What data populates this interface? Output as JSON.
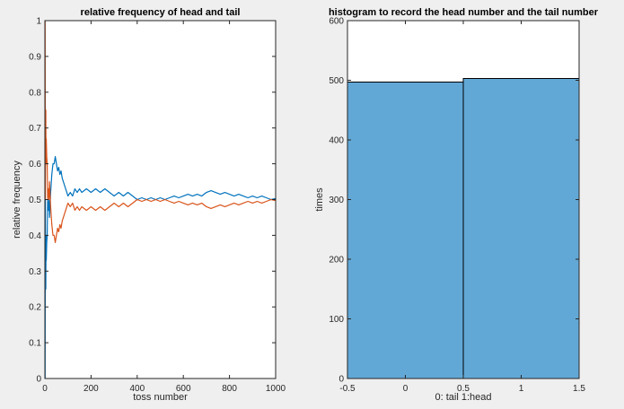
{
  "chart_data": [
    {
      "type": "line",
      "title": "relative frequency of head and tail",
      "xlabel": "toss number",
      "ylabel": "relative frequency",
      "xlim": [
        0,
        1000
      ],
      "ylim": [
        0,
        1
      ],
      "xticks": [
        "0",
        "200",
        "400",
        "600",
        "800",
        "1000"
      ],
      "yticks": [
        "0",
        "0.1",
        "0.2",
        "0.3",
        "0.4",
        "0.5",
        "0.6",
        "0.7",
        "0.8",
        "0.9",
        "1"
      ],
      "grid": false,
      "series": [
        {
          "color": "#0072bd",
          "points": [
            [
              1,
              0
            ],
            [
              2,
              0.5
            ],
            [
              3,
              0.33
            ],
            [
              4,
              0.25
            ],
            [
              5,
              0.4
            ],
            [
              6,
              0.33
            ],
            [
              8,
              0.38
            ],
            [
              10,
              0.4
            ],
            [
              12,
              0.5
            ],
            [
              15,
              0.47
            ],
            [
              18,
              0.5
            ],
            [
              20,
              0.45
            ],
            [
              25,
              0.52
            ],
            [
              30,
              0.57
            ],
            [
              35,
              0.6
            ],
            [
              40,
              0.6
            ],
            [
              45,
              0.62
            ],
            [
              50,
              0.6
            ],
            [
              55,
              0.58
            ],
            [
              60,
              0.59
            ],
            [
              65,
              0.57
            ],
            [
              70,
              0.58
            ],
            [
              75,
              0.56
            ],
            [
              80,
              0.55
            ],
            [
              90,
              0.53
            ],
            [
              100,
              0.51
            ],
            [
              110,
              0.52
            ],
            [
              120,
              0.51
            ],
            [
              130,
              0.53
            ],
            [
              140,
              0.52
            ],
            [
              150,
              0.53
            ],
            [
              160,
              0.52
            ],
            [
              180,
              0.53
            ],
            [
              200,
              0.52
            ],
            [
              220,
              0.53
            ],
            [
              240,
              0.52
            ],
            [
              260,
              0.53
            ],
            [
              280,
              0.52
            ],
            [
              300,
              0.51
            ],
            [
              320,
              0.52
            ],
            [
              340,
              0.51
            ],
            [
              360,
              0.52
            ],
            [
              380,
              0.51
            ],
            [
              400,
              0.5
            ],
            [
              420,
              0.505
            ],
            [
              440,
              0.5
            ],
            [
              460,
              0.505
            ],
            [
              480,
              0.5
            ],
            [
              500,
              0.505
            ],
            [
              520,
              0.5
            ],
            [
              540,
              0.505
            ],
            [
              560,
              0.51
            ],
            [
              580,
              0.505
            ],
            [
              600,
              0.51
            ],
            [
              620,
              0.515
            ],
            [
              640,
              0.51
            ],
            [
              660,
              0.515
            ],
            [
              680,
              0.51
            ],
            [
              700,
              0.52
            ],
            [
              720,
              0.525
            ],
            [
              740,
              0.52
            ],
            [
              760,
              0.515
            ],
            [
              780,
              0.52
            ],
            [
              800,
              0.515
            ],
            [
              820,
              0.51
            ],
            [
              840,
              0.515
            ],
            [
              860,
              0.51
            ],
            [
              880,
              0.505
            ],
            [
              900,
              0.51
            ],
            [
              920,
              0.505
            ],
            [
              940,
              0.51
            ],
            [
              960,
              0.505
            ],
            [
              980,
              0.5
            ],
            [
              1000,
              0.503
            ]
          ]
        },
        {
          "color": "#d95319",
          "points": [
            [
              1,
              1
            ],
            [
              2,
              0.5
            ],
            [
              3,
              0.67
            ],
            [
              4,
              0.75
            ],
            [
              5,
              0.6
            ],
            [
              6,
              0.67
            ],
            [
              8,
              0.62
            ],
            [
              10,
              0.6
            ],
            [
              12,
              0.5
            ],
            [
              15,
              0.53
            ],
            [
              18,
              0.5
            ],
            [
              20,
              0.55
            ],
            [
              25,
              0.48
            ],
            [
              30,
              0.43
            ],
            [
              35,
              0.4
            ],
            [
              40,
              0.4
            ],
            [
              45,
              0.38
            ],
            [
              50,
              0.4
            ],
            [
              55,
              0.42
            ],
            [
              60,
              0.41
            ],
            [
              65,
              0.43
            ],
            [
              70,
              0.42
            ],
            [
              75,
              0.44
            ],
            [
              80,
              0.45
            ],
            [
              90,
              0.47
            ],
            [
              100,
              0.49
            ],
            [
              110,
              0.48
            ],
            [
              120,
              0.49
            ],
            [
              130,
              0.47
            ],
            [
              140,
              0.48
            ],
            [
              150,
              0.47
            ],
            [
              160,
              0.48
            ],
            [
              180,
              0.47
            ],
            [
              200,
              0.48
            ],
            [
              220,
              0.47
            ],
            [
              240,
              0.48
            ],
            [
              260,
              0.47
            ],
            [
              280,
              0.48
            ],
            [
              300,
              0.49
            ],
            [
              320,
              0.48
            ],
            [
              340,
              0.49
            ],
            [
              360,
              0.48
            ],
            [
              380,
              0.49
            ],
            [
              400,
              0.5
            ],
            [
              420,
              0.495
            ],
            [
              440,
              0.5
            ],
            [
              460,
              0.495
            ],
            [
              480,
              0.5
            ],
            [
              500,
              0.495
            ],
            [
              520,
              0.5
            ],
            [
              540,
              0.495
            ],
            [
              560,
              0.49
            ],
            [
              580,
              0.495
            ],
            [
              600,
              0.49
            ],
            [
              620,
              0.485
            ],
            [
              640,
              0.49
            ],
            [
              660,
              0.485
            ],
            [
              680,
              0.49
            ],
            [
              700,
              0.48
            ],
            [
              720,
              0.475
            ],
            [
              740,
              0.48
            ],
            [
              760,
              0.485
            ],
            [
              780,
              0.48
            ],
            [
              800,
              0.485
            ],
            [
              820,
              0.49
            ],
            [
              840,
              0.485
            ],
            [
              860,
              0.49
            ],
            [
              880,
              0.495
            ],
            [
              900,
              0.49
            ],
            [
              920,
              0.495
            ],
            [
              940,
              0.49
            ],
            [
              960,
              0.495
            ],
            [
              980,
              0.5
            ],
            [
              1000,
              0.497
            ]
          ]
        }
      ]
    },
    {
      "type": "bar",
      "title": "histogram to record the head number and the tail number",
      "xlabel": "0: tail 1:head",
      "ylabel": "times",
      "xlim": [
        -0.5,
        1.5
      ],
      "ylim": [
        0,
        600
      ],
      "xticks": [
        "-0.5",
        "0",
        "0.5",
        "1",
        "1.5"
      ],
      "yticks": [
        "0",
        "100",
        "200",
        "300",
        "400",
        "500",
        "600"
      ],
      "bins": [
        [
          -0.5,
          0.5
        ],
        [
          0.5,
          1.5
        ]
      ],
      "values": [
        497,
        503
      ],
      "bar_color": "#62a8d6",
      "grid": false
    }
  ]
}
